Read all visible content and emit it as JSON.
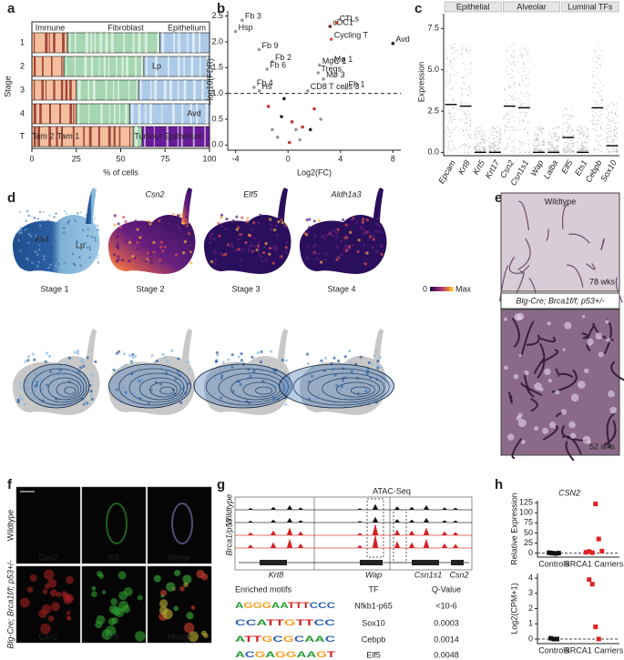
{
  "panel_labels": [
    "a",
    "b",
    "c",
    "d",
    "e",
    "f",
    "g",
    "h"
  ],
  "panel_a": {
    "type": "bar",
    "orientation": "horizontal",
    "stacked": true,
    "ylabel": "Stage",
    "xlabel": "% of cells",
    "categories": [
      "1",
      "2",
      "3",
      "4",
      "T"
    ],
    "series": [
      {
        "name": "Immune",
        "color": "#e8702a",
        "values": [
          20,
          18,
          25,
          25,
          57
        ]
      },
      {
        "name": "Fibroblast",
        "color": "#3aa655",
        "values": [
          52,
          45,
          35,
          30,
          5
        ]
      },
      {
        "name": "Epithelium",
        "color": "#4a8ccc",
        "values": [
          28,
          37,
          40,
          45,
          38
        ]
      }
    ],
    "xlim": [
      0,
      100
    ],
    "xticks": [
      0,
      25,
      50,
      75,
      100
    ],
    "annotations": [
      "Lp",
      "Avd",
      "Tam 2",
      "Tam 1",
      "Tumour Epithelium"
    ]
  },
  "panel_b": {
    "type": "scatter",
    "xlabel": "Log2(FC)",
    "ylabel": "−log10(FDR)",
    "xlim": [
      -4.6,
      8.6
    ],
    "ylim": [
      -0.1,
      2.6
    ],
    "xticks": [
      -4,
      0,
      4,
      8
    ],
    "yticks": [
      {
        "value": 0,
        "label": "0.0"
      },
      0.5,
      {
        "value": 1,
        "label": "1.0"
      },
      1.5,
      {
        "value": 2,
        "label": "2.0"
      },
      2.5
    ],
    "threshold": 1,
    "labels": [
      "Fb 3",
      "Hsp",
      "cDC1",
      "CTLs",
      "Cycling T",
      "Avd",
      "Fb 9",
      "Fb 2",
      "Fb 6",
      "MdC 1",
      "Tregs",
      "Mø 1",
      "Mø 3",
      "Fb 4",
      "Hs",
      "CD8 T cells 3",
      "Fb 1",
      null,
      null,
      null,
      null,
      null,
      null,
      null,
      null,
      null,
      null,
      null,
      null,
      null
    ],
    "x": [
      -3.5,
      -4.0,
      3.2,
      3.7,
      3.3,
      8.0,
      -2.2,
      -1.2,
      -1.6,
      2.4,
      2.3,
      3.3,
      2.7,
      -2.6,
      -2.2,
      1.5,
      4.4,
      -1.5,
      -0.5,
      0.3,
      0.6,
      1.1,
      -0.8,
      0.1,
      2.0,
      1.7,
      -1.2,
      0.9,
      -0.3,
      2.5
    ],
    "y": [
      2.42,
      2.2,
      2.3,
      2.37,
      2.05,
      1.97,
      1.85,
      1.62,
      1.47,
      1.55,
      1.4,
      1.58,
      1.28,
      1.12,
      1.05,
      1.05,
      1.1,
      0.75,
      0.55,
      0.45,
      0.3,
      0.35,
      0.15,
      0.05,
      0.7,
      0.3,
      0.3,
      0.1,
      0.9,
      0.5
    ],
    "colors": [
      "#999",
      "#999",
      "#7a1f1f",
      "#c0392b",
      "#d9534f",
      "#222",
      "#999",
      "#999",
      "#999",
      "#999",
      "#999",
      "#999",
      "#999",
      "#999",
      "#999",
      "#999",
      "#999",
      "#c0392b",
      "#222",
      "#c0392b",
      "#999",
      "#c0392b",
      "#999",
      "#c0392b",
      "#c0392b",
      "#222",
      "#999",
      "#999",
      "#222",
      "#999"
    ]
  },
  "panel_c": {
    "type": "strip",
    "ylabel": "Expression",
    "group_labels": [
      "Epithelial",
      "Alveolar",
      "Luminal TFs"
    ],
    "categories": [
      "Epcam",
      "Krt8",
      "Krt5",
      "Krt17",
      "Csn2",
      "Csn1s1",
      "Wap",
      "Lalba",
      "Elf5",
      "Ets1",
      "Cebpb",
      "Sox10"
    ],
    "medians": [
      2.9,
      2.8,
      0,
      0,
      2.8,
      2.7,
      0,
      0,
      0.9,
      0,
      2.7,
      0.4
    ],
    "ylim": [
      -0.2,
      8.4
    ],
    "yticks": [
      {
        "value": 0,
        "label": "0.0"
      },
      2.5,
      {
        "value": 5,
        "label": "5.0"
      },
      7.5
    ]
  },
  "panel_d": {
    "cluster_labels": [
      "Avd",
      "Lp"
    ],
    "gene_titles": [
      "Csn2",
      "Elf5",
      "Aldh1a3"
    ],
    "stage_titles": [
      "Stage 1",
      "Stage 2",
      "Stage 3",
      "Stage 4"
    ],
    "colorbar_labels": [
      "0",
      "Max"
    ]
  },
  "panel_e": {
    "top_title": "Wildtype",
    "top_age": "78 wks",
    "bottom_title": "Blg-Cre; Brca1f/f; p53+/-",
    "bottom_age": "52 wks"
  },
  "panel_f": {
    "row_labels": [
      "Wildtype",
      "Blg-Cre; Brca1f/f; p53+/-"
    ],
    "channel_labels": [
      "Csn2",
      "K8",
      "Merge"
    ]
  },
  "panel_g": {
    "title": "ATAC-Seq",
    "track_groups": [
      "Wildtype",
      "Brca1/p53"
    ],
    "genes": [
      "Krt8",
      "Wap",
      "Csn1s1",
      "Csn2"
    ],
    "motifs_title": "Enriched motifs",
    "motifs": [
      "AGGGAATTTCCC",
      "CCATTGTTCC",
      "ATTGCGCAAC",
      "ACGAGGAAGT"
    ],
    "table": {
      "columns": [
        "TF",
        "Q-Value"
      ],
      "rows": [
        [
          "Nfkb1-p65",
          "<10-6"
        ],
        [
          "Sox10",
          "0.0003"
        ],
        [
          "Cebpb",
          "0.0014"
        ],
        [
          "Elf5",
          "0.0048"
        ]
      ]
    }
  },
  "panel_h": {
    "title": "CSN2",
    "categories": [
      "Controls",
      "BRCA1 Carriers"
    ],
    "top": {
      "ylabel": "Relative Expression",
      "ylim": [
        -10,
        130
      ],
      "yticks": [
        0,
        25,
        50,
        75,
        100,
        125
      ],
      "baseline": 0,
      "groups": [
        {
          "color": "#111",
          "values": [
            1,
            0,
            -1,
            0
          ]
        },
        {
          "color": "#e02020",
          "values": [
            2,
            4,
            1,
            122,
            35,
            5
          ]
        }
      ]
    },
    "bottom": {
      "ylabel": "Log2(CPM+1)",
      "ylim": [
        -0.3,
        4.3
      ],
      "yticks": [
        0,
        1,
        2,
        3,
        4
      ],
      "baseline": 0,
      "groups": [
        {
          "color": "#111",
          "values": [
            0.05,
            0,
            0
          ]
        },
        {
          "color": "#e02020",
          "values": [
            3.9,
            3.6,
            0.8,
            0
          ]
        }
      ]
    }
  }
}
